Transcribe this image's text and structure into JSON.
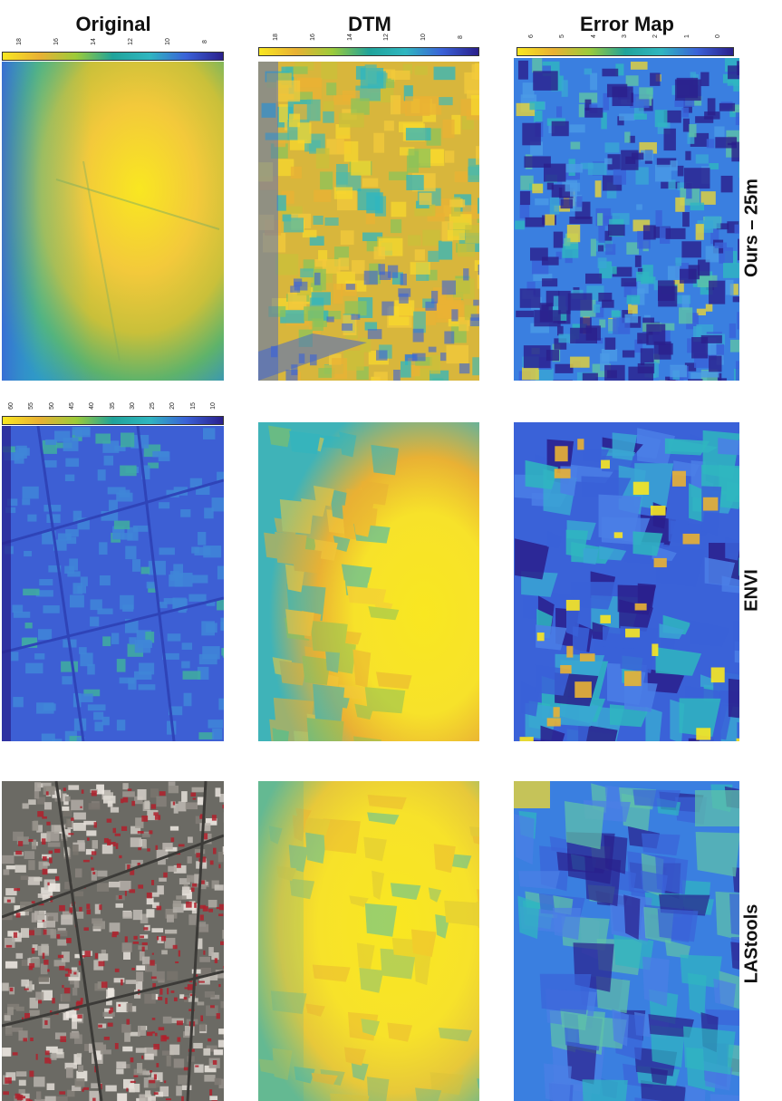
{
  "columns": {
    "original": "Original",
    "dtm": "DTM",
    "error_map": "Error Map"
  },
  "rows": {
    "row1": "Ours – 25m",
    "row2": "ENVI",
    "row3": "LAStools"
  },
  "colorbars": {
    "original_top": [
      "18",
      "16",
      "14",
      "12",
      "10",
      "8"
    ],
    "dtm_top": [
      "18",
      "16",
      "14",
      "12",
      "10",
      "8"
    ],
    "error_top": [
      "6",
      "5",
      "4",
      "3",
      "2",
      "1",
      "0"
    ],
    "original_mid": [
      "60",
      "55",
      "50",
      "45",
      "40",
      "35",
      "30",
      "25",
      "20",
      "15",
      "10"
    ]
  },
  "colors": {
    "yellow": "#f9e721",
    "orange": "#e9b134",
    "teal": "#20a39a",
    "cyan": "#2fb6c0",
    "blue": "#3a62d8",
    "dark_blue": "#2a1f8c",
    "photo_red": "#b0202c"
  }
}
